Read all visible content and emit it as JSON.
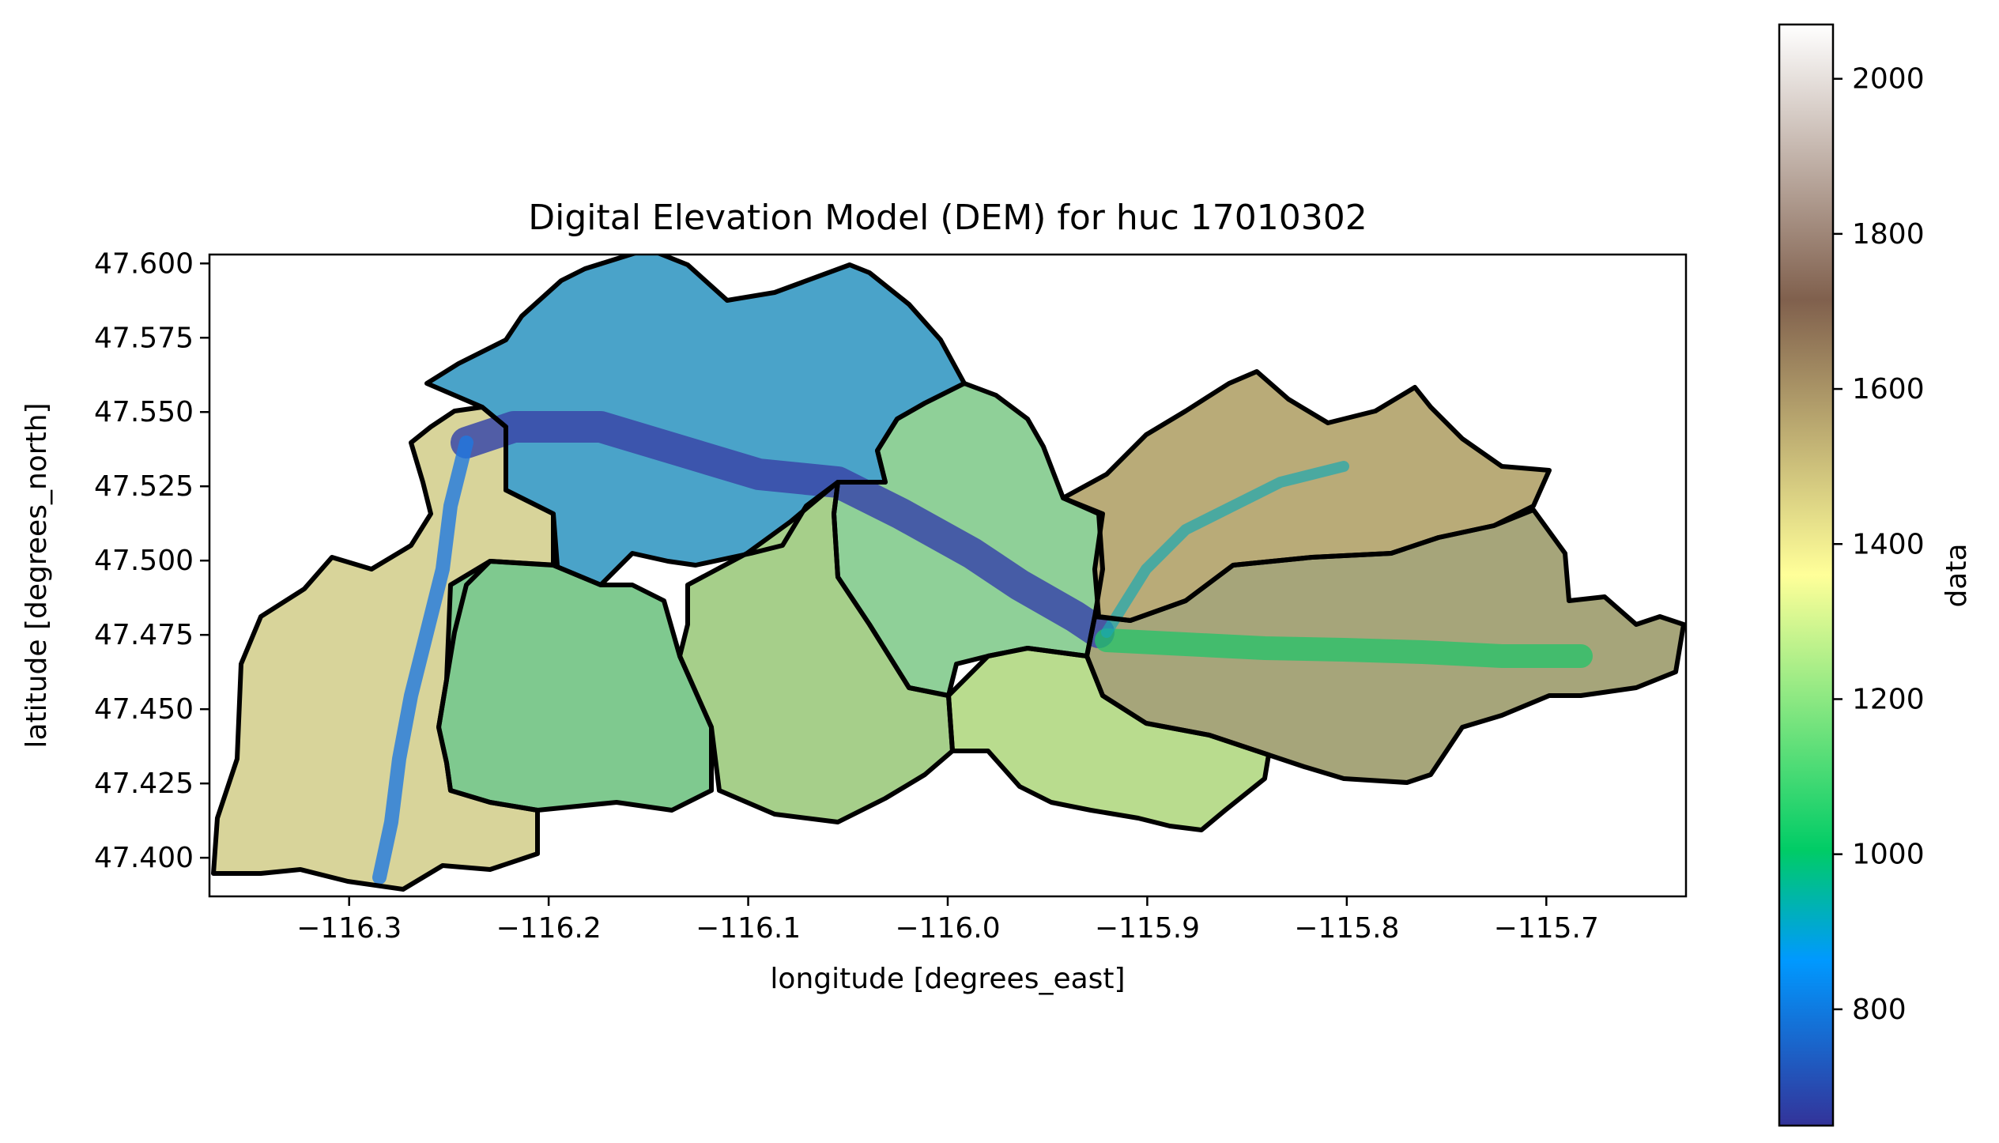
{
  "chart_data": {
    "type": "heatmap",
    "title": "Digital Elevation Model (DEM) for huc 17010302",
    "xlabel": "longitude [degrees_east]",
    "ylabel": "latitude [degrees_north]",
    "xlim": [
      -116.37,
      -115.63
    ],
    "ylim": [
      47.387,
      47.603
    ],
    "x_ticks": [
      -116.3,
      -116.2,
      -116.1,
      -116.0,
      -115.9,
      -115.8,
      -115.7
    ],
    "x_tick_labels": [
      "−116.3",
      "−116.2",
      "−116.1",
      "−116.0",
      "−115.9",
      "−115.8",
      "−115.7"
    ],
    "y_ticks": [
      47.4,
      47.425,
      47.45,
      47.475,
      47.5,
      47.525,
      47.55,
      47.575,
      47.6
    ],
    "y_tick_labels": [
      "47.400",
      "47.425",
      "47.450",
      "47.475",
      "47.500",
      "47.525",
      "47.550",
      "47.575",
      "47.600"
    ],
    "colorbar": {
      "label": "data",
      "colormap": "terrain",
      "range": [
        650,
        2070
      ],
      "ticks": [
        800,
        1000,
        1200,
        1400,
        1600,
        1800,
        2000
      ],
      "tick_labels": [
        "800",
        "1000",
        "1200",
        "1400",
        "1600",
        "1800",
        "2000"
      ]
    },
    "subbasin_outlines_color": "#000000"
  }
}
